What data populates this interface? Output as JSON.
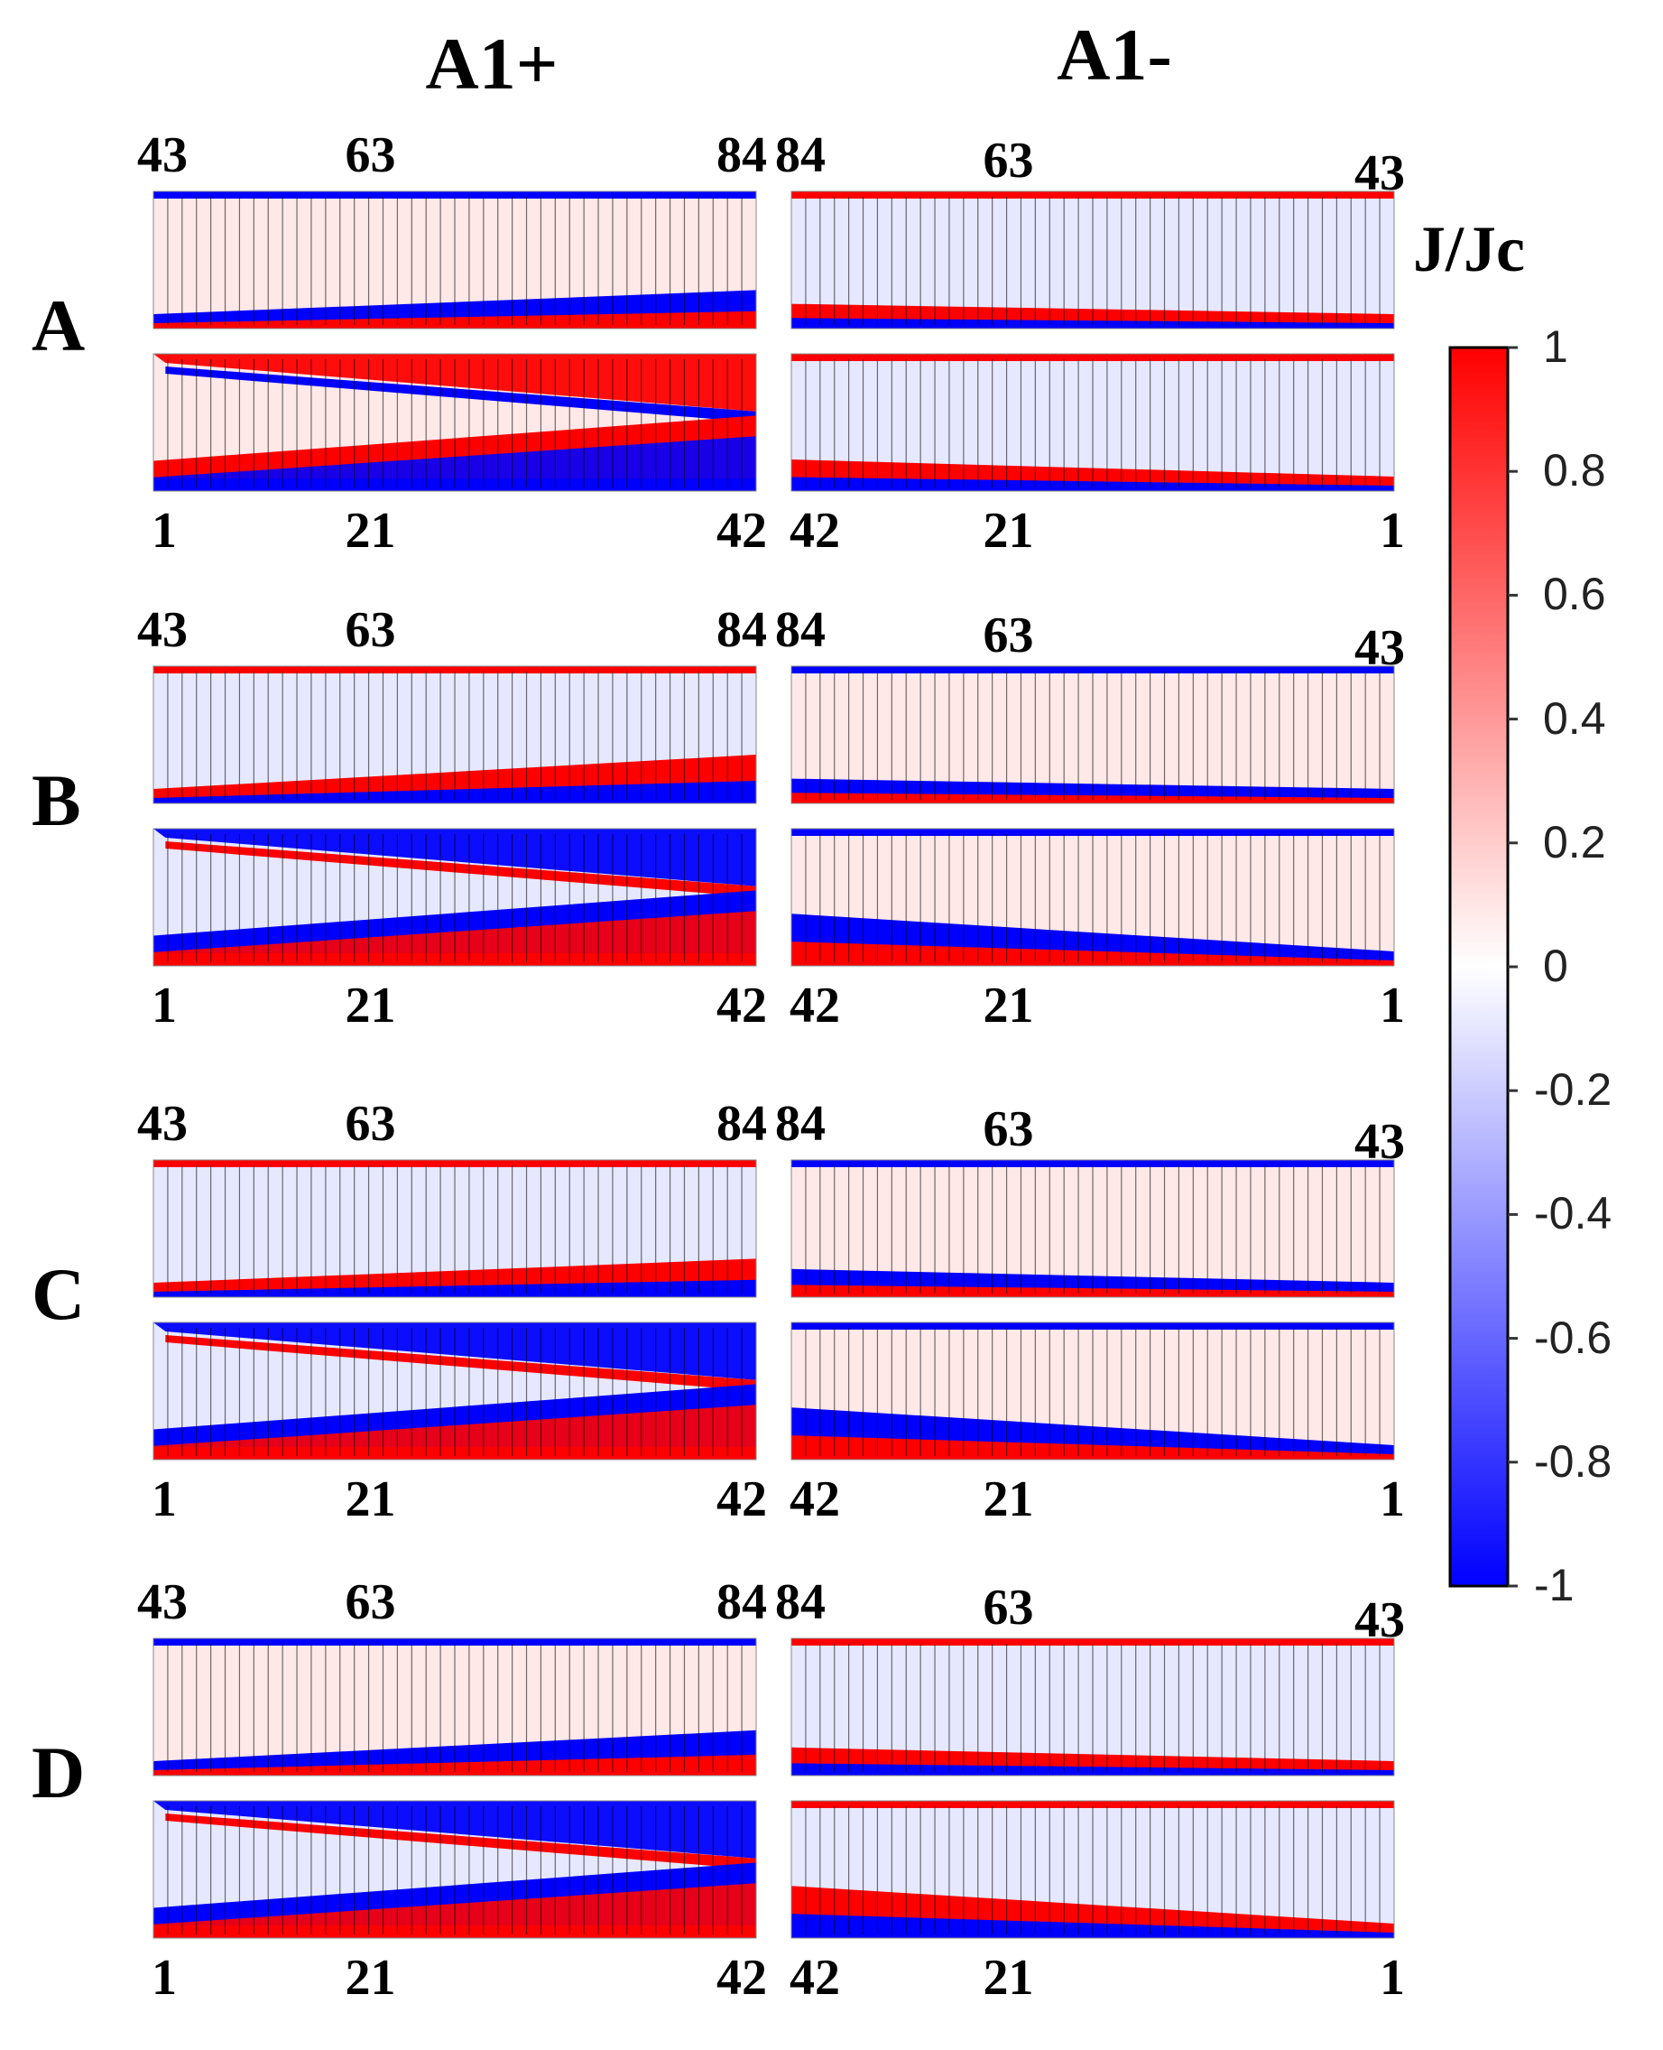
{
  "columns": [
    {
      "title": "A1+",
      "top_labels": [
        "43",
        "63",
        "84"
      ],
      "bottom_labels": [
        "1",
        "21",
        "42"
      ]
    },
    {
      "title": "A1-",
      "top_labels": [
        "84",
        "63",
        "43"
      ],
      "bottom_labels": [
        "42",
        "21",
        "1"
      ]
    }
  ],
  "rows": [
    {
      "label": "A",
      "upper": [
        {
          "dir": "c",
          "b": 0.35
        },
        {
          "dir": "-c",
          "b": 0.15
        }
      ],
      "lower": [
        {
          "dir": "x",
          "b": 1.0
        },
        {
          "dir": "-c",
          "b": 0.25
        }
      ]
    },
    {
      "label": "B",
      "upper": [
        {
          "dir": "-c",
          "b": 0.5
        },
        {
          "dir": "c",
          "b": 0.15
        }
      ],
      "lower": [
        {
          "dir": "-x",
          "b": 1.0
        },
        {
          "dir": "c",
          "b": 0.55
        }
      ]
    },
    {
      "label": "C",
      "upper": [
        {
          "dir": "-c",
          "b": 0.35
        },
        {
          "dir": "c",
          "b": 0.2
        }
      ],
      "lower": [
        {
          "dir": "-x",
          "b": 1.0
        },
        {
          "dir": "c",
          "b": 0.55
        }
      ]
    },
    {
      "label": "D",
      "upper": [
        {
          "dir": "c",
          "b": 0.45
        },
        {
          "dir": "-c",
          "b": 0.2
        }
      ],
      "lower": [
        {
          "dir": "-x",
          "b": 1.0
        },
        {
          "dir": "-c",
          "b": 0.55
        }
      ]
    }
  ],
  "colorbar": {
    "title": "J/Jc",
    "ticks": [
      "1",
      "0.8",
      "0.6",
      "0.4",
      "0.2",
      "0",
      "-0.2",
      "-0.4",
      "-0.6",
      "-0.8",
      "-1"
    ],
    "positive_color": "#ff0000",
    "zero_color": "#ffffff",
    "negative_color": "#0000ff"
  },
  "cells_per_strip": 42
}
